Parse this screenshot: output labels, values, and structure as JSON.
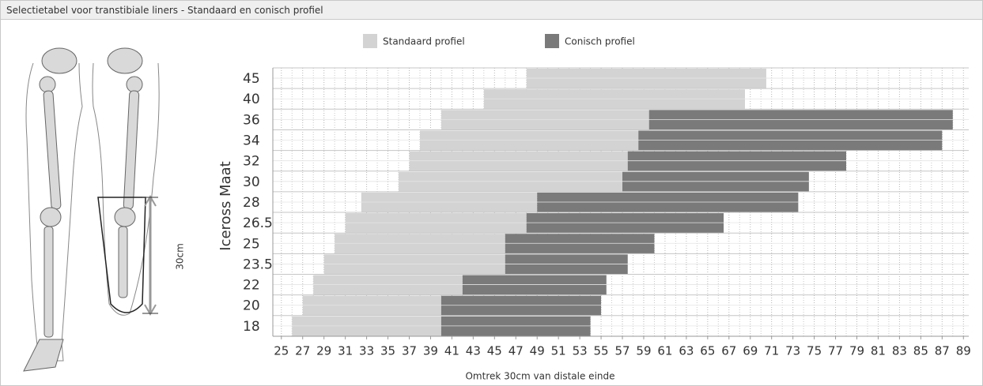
{
  "header": {
    "title": "Selectietabel voor transtibiale liners - Standaard en conisch profiel"
  },
  "illustration": {
    "label": "30cm"
  },
  "chart_data": {
    "type": "range-bar",
    "ylabel": "Iceross Maat",
    "xlabel": "Omtrek 30cm van distale einde",
    "categories": [
      "45",
      "40",
      "36",
      "34",
      "32",
      "30",
      "28",
      "26.5",
      "25",
      "23.5",
      "22",
      "20",
      "18"
    ],
    "series": [
      {
        "name": "Standaard profiel",
        "color": "#d3d3d3",
        "ranges": [
          [
            48,
            70.5
          ],
          [
            44,
            68.5
          ],
          [
            40,
            59.5
          ],
          [
            38,
            58.5
          ],
          [
            37,
            57.5
          ],
          [
            36,
            57
          ],
          [
            32.5,
            49
          ],
          [
            31,
            48
          ],
          [
            30,
            46
          ],
          [
            29,
            46
          ],
          [
            28,
            42
          ],
          [
            27,
            40
          ],
          [
            26,
            40
          ]
        ]
      },
      {
        "name": "Conisch profiel",
        "color": "#7a7a7a",
        "ranges": [
          null,
          null,
          [
            59.5,
            88
          ],
          [
            58.5,
            87
          ],
          [
            57.5,
            78
          ],
          [
            57,
            74.5
          ],
          [
            49,
            73.5
          ],
          [
            48,
            66.5
          ],
          [
            46,
            60
          ],
          [
            46,
            57.5
          ],
          [
            42,
            55.5
          ],
          [
            40,
            55
          ],
          [
            40,
            54
          ]
        ]
      }
    ],
    "xlim": [
      24.2,
      89.5
    ],
    "xticks": [
      25,
      27,
      29,
      31,
      33,
      35,
      37,
      39,
      41,
      43,
      45,
      47,
      49,
      51,
      53,
      55,
      57,
      59,
      61,
      63,
      65,
      67,
      69,
      71,
      73,
      75,
      77,
      79,
      81,
      83,
      85,
      87,
      89
    ],
    "grid": true
  }
}
